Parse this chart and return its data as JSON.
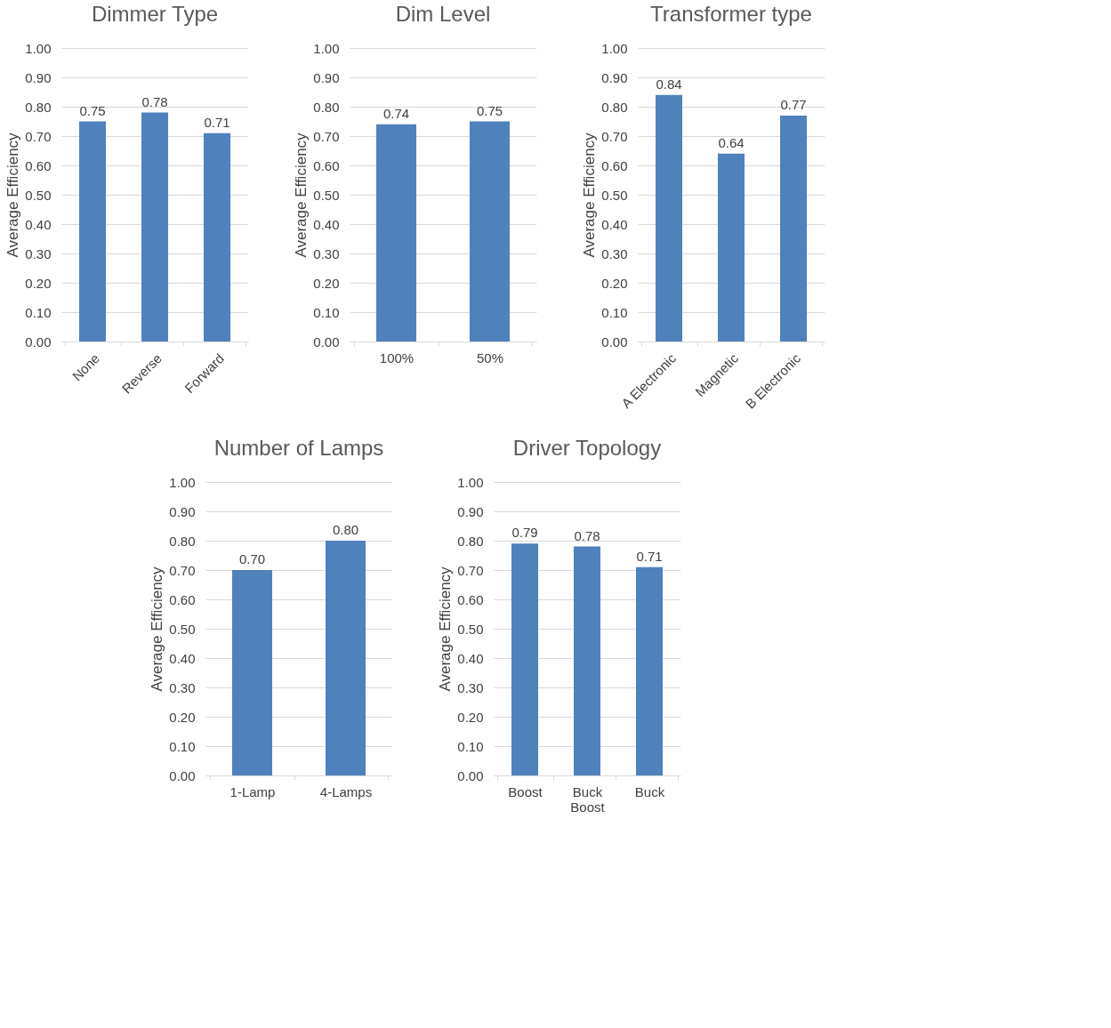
{
  "chart_data": [
    {
      "type": "bar",
      "title": "Dimmer Type",
      "ylabel": "Average Efficiency",
      "categories": [
        "None",
        "Reverse",
        "Forward"
      ],
      "values": [
        0.75,
        0.78,
        0.71
      ],
      "value_labels": [
        "0.75",
        "0.78",
        "0.71"
      ],
      "color": "#4f81bd",
      "ylim": [
        0,
        1
      ],
      "yticks": [
        {
          "value": 0,
          "label": "0.00"
        },
        {
          "value": 0.1,
          "label": "0.10"
        },
        {
          "value": 0.2,
          "label": "0.20"
        },
        {
          "value": 0.3,
          "label": "0.30"
        },
        {
          "value": 0.4,
          "label": "0.40"
        },
        {
          "value": 0.5,
          "label": "0.50"
        },
        {
          "value": 0.6,
          "label": "0.60"
        },
        {
          "value": 0.7,
          "label": "0.70"
        },
        {
          "value": 0.8,
          "label": "0.80"
        },
        {
          "value": 0.9,
          "label": "0.90"
        },
        {
          "value": 1,
          "label": "1.00"
        }
      ],
      "grid": "y"
    },
    {
      "type": "bar",
      "title": "Dim Level",
      "ylabel": "Average Efficiency",
      "categories": [
        "100%",
        "50%"
      ],
      "values": [
        0.74,
        0.75
      ],
      "value_labels": [
        "0.74",
        "0.75"
      ],
      "color": "#4f81bd",
      "ylim": [
        0,
        1
      ],
      "yticks": [
        {
          "value": 0,
          "label": "0.00"
        },
        {
          "value": 0.1,
          "label": "0.10"
        },
        {
          "value": 0.2,
          "label": "0.20"
        },
        {
          "value": 0.3,
          "label": "0.30"
        },
        {
          "value": 0.4,
          "label": "0.40"
        },
        {
          "value": 0.5,
          "label": "0.50"
        },
        {
          "value": 0.6,
          "label": "0.60"
        },
        {
          "value": 0.7,
          "label": "0.70"
        },
        {
          "value": 0.8,
          "label": "0.80"
        },
        {
          "value": 0.9,
          "label": "0.90"
        },
        {
          "value": 1,
          "label": "1.00"
        }
      ],
      "grid": "y"
    },
    {
      "type": "bar",
      "title": "Transformer type",
      "ylabel": "Average Efficiency",
      "categories": [
        "A Electronic",
        "Magnetic",
        "B Electronic"
      ],
      "values": [
        0.84,
        0.64,
        0.77
      ],
      "value_labels": [
        "0.84",
        "0.64",
        "0.77"
      ],
      "color": "#4f81bd",
      "ylim": [
        0,
        1
      ],
      "yticks": [
        {
          "value": 0,
          "label": "0.00"
        },
        {
          "value": 0.1,
          "label": "0.10"
        },
        {
          "value": 0.2,
          "label": "0.20"
        },
        {
          "value": 0.3,
          "label": "0.30"
        },
        {
          "value": 0.4,
          "label": "0.40"
        },
        {
          "value": 0.5,
          "label": "0.50"
        },
        {
          "value": 0.6,
          "label": "0.60"
        },
        {
          "value": 0.7,
          "label": "0.70"
        },
        {
          "value": 0.8,
          "label": "0.80"
        },
        {
          "value": 0.9,
          "label": "0.90"
        },
        {
          "value": 1,
          "label": "1.00"
        }
      ],
      "grid": "y"
    },
    {
      "type": "bar",
      "title": "Number of Lamps",
      "ylabel": "Average Efficiency",
      "categories": [
        "1-Lamp",
        "4-Lamps"
      ],
      "values": [
        0.7,
        0.8
      ],
      "value_labels": [
        "0.70",
        "0.80"
      ],
      "color": "#4f81bd",
      "ylim": [
        0,
        1
      ],
      "yticks": [
        {
          "value": 0,
          "label": "0.00"
        },
        {
          "value": 0.1,
          "label": "0.10"
        },
        {
          "value": 0.2,
          "label": "0.20"
        },
        {
          "value": 0.3,
          "label": "0.30"
        },
        {
          "value": 0.4,
          "label": "0.40"
        },
        {
          "value": 0.5,
          "label": "0.50"
        },
        {
          "value": 0.6,
          "label": "0.60"
        },
        {
          "value": 0.7,
          "label": "0.70"
        },
        {
          "value": 0.8,
          "label": "0.80"
        },
        {
          "value": 0.9,
          "label": "0.90"
        },
        {
          "value": 1,
          "label": "1.00"
        }
      ],
      "grid": "y"
    },
    {
      "type": "bar",
      "title": "Driver Topology",
      "ylabel": "Average Efficiency",
      "categories": [
        "Boost",
        "Buck Boost",
        "Buck"
      ],
      "values": [
        0.79,
        0.78,
        0.71
      ],
      "value_labels": [
        "0.79",
        "0.78",
        "0.71"
      ],
      "color": "#4f81bd",
      "ylim": [
        0,
        1
      ],
      "yticks": [
        {
          "value": 0,
          "label": "0.00"
        },
        {
          "value": 0.1,
          "label": "0.10"
        },
        {
          "value": 0.2,
          "label": "0.20"
        },
        {
          "value": 0.3,
          "label": "0.30"
        },
        {
          "value": 0.4,
          "label": "0.40"
        },
        {
          "value": 0.5,
          "label": "0.50"
        },
        {
          "value": 0.6,
          "label": "0.60"
        },
        {
          "value": 0.7,
          "label": "0.70"
        },
        {
          "value": 0.8,
          "label": "0.80"
        },
        {
          "value": 0.9,
          "label": "0.90"
        },
        {
          "value": 1,
          "label": "1.00"
        }
      ],
      "grid": "y"
    }
  ]
}
